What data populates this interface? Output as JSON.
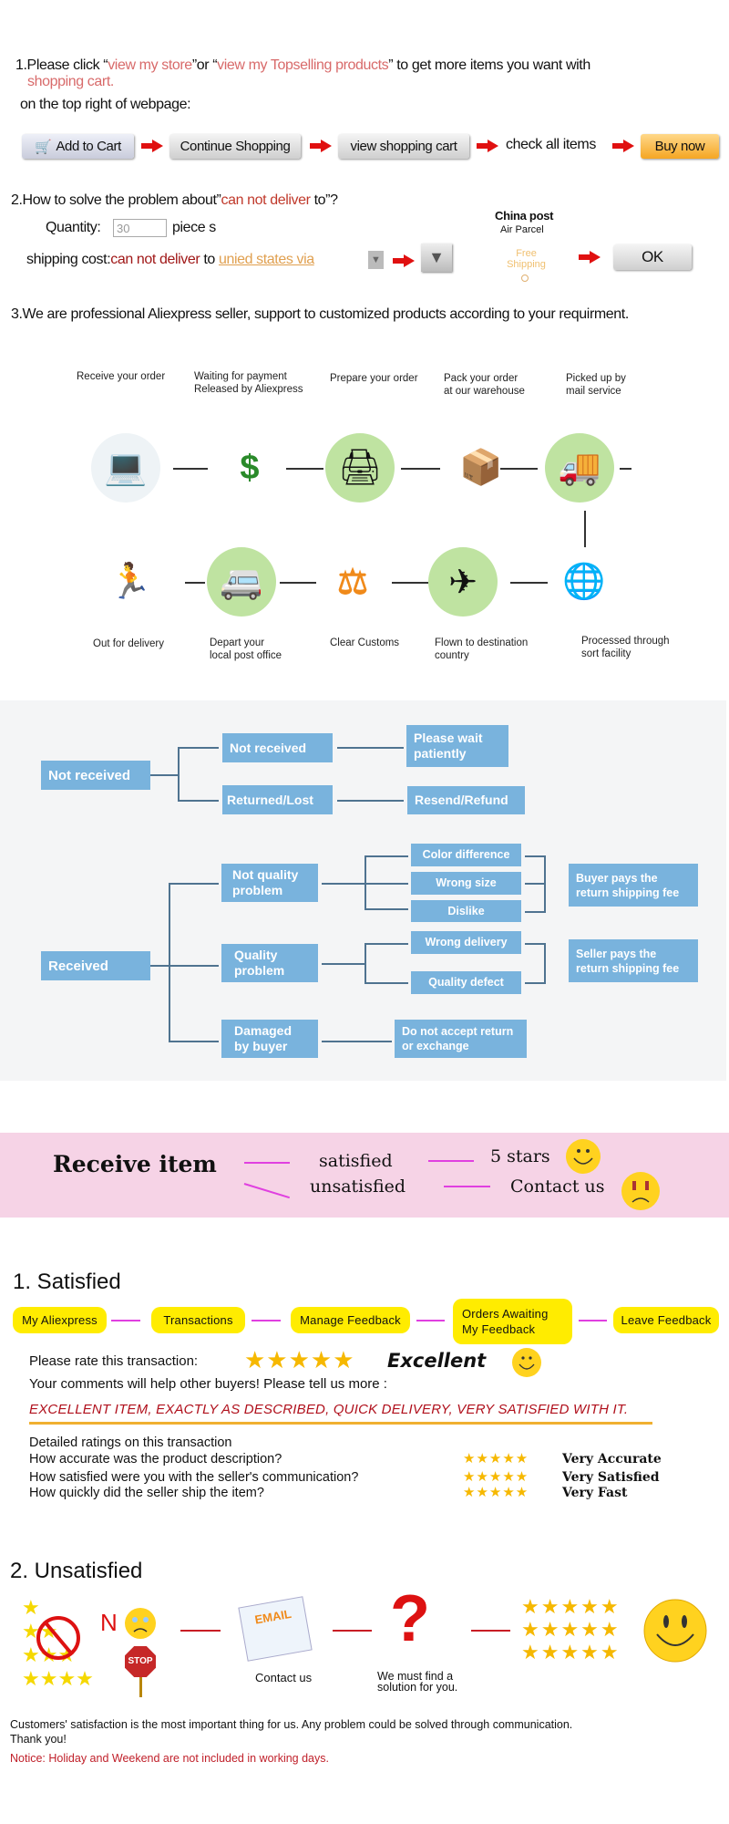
{
  "section1": {
    "intro_prefix": "1.Please click “",
    "link_store": "view my store",
    "mid": "”or “",
    "link_top": "view my Topselling products",
    "suffix": "” to get more items you want with",
    "line2": "shopping cart.",
    "line3": "on the top right of webpage:",
    "steps": [
      "Add to Cart",
      "Continue Shopping",
      "view shopping cart",
      "check all items",
      "Buy now"
    ]
  },
  "section2": {
    "heading_prefix": "2.How to solve the problem about”",
    "heading_red": "can not deliver",
    "heading_suffix": " to”?",
    "quantity_label": "Quantity:",
    "quantity_value": "30",
    "quantity_unit": "piece s",
    "shipping_label": "shipping cost:",
    "shipping_red": "can not deliver",
    "shipping_to": " to ",
    "shipping_link": "unied states via",
    "carrier": "China post",
    "carrier_sub": "Air Parcel",
    "free_shipping": "Free Shipping",
    "ok": "OK"
  },
  "section3": {
    "heading": "3.We are professional Aliexpress seller, support to customized products according to your requirment.",
    "row1": [
      [
        "Receive your order",
        ""
      ],
      [
        "Waiting for payment",
        "Released by Aliexpress"
      ],
      [
        "Prepare your order",
        ""
      ],
      [
        "Pack your order",
        "at our warehouse"
      ],
      [
        "Picked up by",
        "mail service"
      ]
    ],
    "row2": [
      [
        "Out for delivery",
        ""
      ],
      [
        "Depart your",
        "local post office"
      ],
      [
        "Clear Customs",
        ""
      ],
      [
        "Flown to destination",
        "country"
      ],
      [
        "Processed through",
        "sort facility"
      ]
    ]
  },
  "tree": {
    "not_received": "Not received",
    "nr_child": "Not received",
    "please_wait": "Please wait patiently",
    "returned": "Returned/Lost",
    "resend": "Resend/Refund",
    "received": "Received",
    "not_quality": "Not quality problem",
    "color_diff": "Color difference",
    "wrong_size": "Wrong size",
    "dislike": "Dislike",
    "buyer_pays": "Buyer pays the return shipping fee",
    "quality": "Quality problem",
    "wrong_delivery": "Wrong delivery",
    "quality_defect": "Quality defect",
    "seller_pays": "Seller pays the return shipping fee",
    "damaged": "Damaged by buyer",
    "no_accept": "Do not accept return or exchange"
  },
  "banner": {
    "receive": "Receive item",
    "satisfied": "satisfied",
    "unsatisfied": "unsatisfied",
    "five_stars": "5 stars",
    "contact": "Contact us"
  },
  "satisfied": {
    "title": "1. Satisfied",
    "steps": [
      "My Aliexpress",
      "Transactions",
      "Manage Feedback",
      "Orders Awaiting My Feedback",
      "Leave Feedback"
    ],
    "rate_label": "Please rate this transaction:",
    "rating": 5,
    "rating_word": "Excellent",
    "comments": "Your comments will help other buyers! Please tell us more :",
    "sample": "EXCELLENT ITEM, EXACTLY AS DESCRIBED, QUICK DELIVERY, VERY SATISFIED WITH IT.",
    "detail_title": "Detailed ratings on this transaction",
    "details": [
      {
        "q": "How accurate was the product description?",
        "a": "Very Accurate"
      },
      {
        "q": "How satisfied were you with the seller's communication?",
        "a": "Very Satisfied"
      },
      {
        "q": "How quickly did the seller ship the item?",
        "a": "Very Fast"
      }
    ]
  },
  "unsatisfied": {
    "title": "2. Unsatisfied",
    "no": "N",
    "stop": "STOP",
    "email": "EMAIL",
    "contact": "Contact us",
    "solution": "We must find a solution for you.",
    "message": "Customers' satisfaction is the most important thing for us. Any problem could be solved through communication. Thank you!",
    "notice": "Notice: Holiday and Weekend are not included in working days."
  },
  "colors": {
    "arrow_red": "#e01010",
    "tree_box": "#79b3dd",
    "banner_pink": "#f6d3e6",
    "pill_yellow": "#ffec00",
    "magenta": "#e040e0"
  }
}
